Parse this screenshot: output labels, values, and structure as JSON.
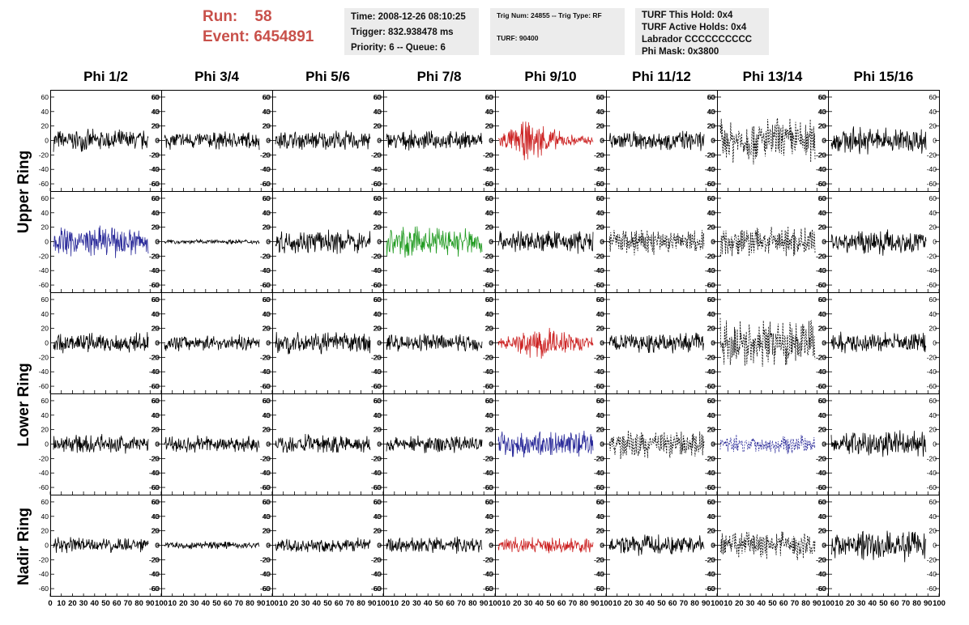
{
  "header": {
    "run_label": "Run:",
    "run_value": "58",
    "event_label": "Event:",
    "event_value": "6454891",
    "event_color": "#c8504a"
  },
  "info_boxes": {
    "time": "Time: 2008-12-26 08:10:25",
    "trigger": "Trigger: 832.938478 ms",
    "priority": "Priority: 6 -- Queue: 6",
    "trig_num": "Trig Num: 24855 -- Trig Type: RF",
    "turf": "TURF: 90400",
    "turf_this_hold": "TURF This Hold: 0x4",
    "turf_active_holds": "TURF Active Holds: 0x4",
    "labrador": "Labrador CCCCCCCCCC",
    "phi_mask": "Phi Mask: 0x3800"
  },
  "columns": [
    "Phi 1/2",
    "Phi 3/4",
    "Phi 5/6",
    "Phi 7/8",
    "Phi 9/10",
    "Phi 11/12",
    "Phi 13/14",
    "Phi 15/16"
  ],
  "rows": [
    "Upper Ring",
    "Upper Ring",
    "Lower Ring",
    "Lower Ring",
    "Nadir Ring"
  ],
  "ring_labels": [
    "Upper Ring",
    "Lower Ring",
    "Nadir Ring"
  ],
  "chart_data": {
    "type": "line",
    "x_range": [
      0,
      100
    ],
    "y_range": [
      -70,
      70
    ],
    "y_ticks": [
      -60,
      -40,
      -20,
      0,
      20,
      40,
      60
    ],
    "x_ticks": [
      0,
      10,
      20,
      30,
      40,
      50,
      60,
      70,
      80,
      90,
      100
    ],
    "x_tick_labels_first": [
      "0",
      "10",
      "20",
      "30",
      "40",
      "50",
      "60",
      "70",
      "80",
      "90",
      "100"
    ],
    "x_tick_labels_other": [
      "10",
      "20",
      "30",
      "40",
      "50",
      "60",
      "70",
      "80",
      "90",
      "100"
    ],
    "grid": false,
    "colors": {
      "black": "#000000",
      "red": "#cc2222",
      "blue": "#2b2b9a",
      "green": "#1f9a1f"
    },
    "panels": [
      [
        {
          "color": "black",
          "style": "solid",
          "amp": 14
        },
        {
          "color": "black",
          "style": "solid",
          "amp": 12
        },
        {
          "color": "black",
          "style": "solid",
          "amp": 13
        },
        {
          "color": "black",
          "style": "solid",
          "amp": 12
        },
        {
          "color": "red",
          "style": "solid",
          "amp": 20
        },
        {
          "color": "black",
          "style": "solid",
          "amp": 13
        },
        {
          "color": "black",
          "style": "dashed",
          "amp": 30
        },
        {
          "color": "black",
          "style": "solid",
          "amp": 18
        }
      ],
      [
        {
          "color": "blue",
          "style": "solid",
          "amp": 20
        },
        {
          "color": "black",
          "style": "solid",
          "amp": 3
        },
        {
          "color": "black",
          "style": "solid",
          "amp": 15
        },
        {
          "color": "green",
          "style": "solid",
          "amp": 20
        },
        {
          "color": "black",
          "style": "solid",
          "amp": 15
        },
        {
          "color": "black",
          "style": "dashed",
          "amp": 18
        },
        {
          "color": "black",
          "style": "dashed",
          "amp": 20
        },
        {
          "color": "black",
          "style": "solid",
          "amp": 17
        }
      ],
      [
        {
          "color": "black",
          "style": "solid",
          "amp": 13
        },
        {
          "color": "black",
          "style": "solid",
          "amp": 10
        },
        {
          "color": "black",
          "style": "solid",
          "amp": 14
        },
        {
          "color": "black",
          "style": "solid",
          "amp": 12
        },
        {
          "color": "red",
          "style": "solid",
          "amp": 17
        },
        {
          "color": "black",
          "style": "solid",
          "amp": 13
        },
        {
          "color": "black",
          "style": "dashed",
          "amp": 30
        },
        {
          "color": "black",
          "style": "solid",
          "amp": 14
        }
      ],
      [
        {
          "color": "black",
          "style": "solid",
          "amp": 12
        },
        {
          "color": "black",
          "style": "solid",
          "amp": 12
        },
        {
          "color": "black",
          "style": "solid",
          "amp": 13
        },
        {
          "color": "black",
          "style": "solid",
          "amp": 12
        },
        {
          "color": "blue",
          "style": "solid",
          "amp": 17
        },
        {
          "color": "black",
          "style": "dashed",
          "amp": 18
        },
        {
          "color": "blue",
          "style": "dashed",
          "amp": 12
        },
        {
          "color": "black",
          "style": "solid",
          "amp": 18
        }
      ],
      [
        {
          "color": "black",
          "style": "solid",
          "amp": 10
        },
        {
          "color": "black",
          "style": "solid",
          "amp": 5
        },
        {
          "color": "black",
          "style": "solid",
          "amp": 9
        },
        {
          "color": "black",
          "style": "solid",
          "amp": 11
        },
        {
          "color": "red",
          "style": "solid",
          "amp": 10
        },
        {
          "color": "black",
          "style": "solid",
          "amp": 13
        },
        {
          "color": "black",
          "style": "dashed",
          "amp": 18
        },
        {
          "color": "black",
          "style": "solid",
          "amp": 20
        }
      ]
    ]
  }
}
